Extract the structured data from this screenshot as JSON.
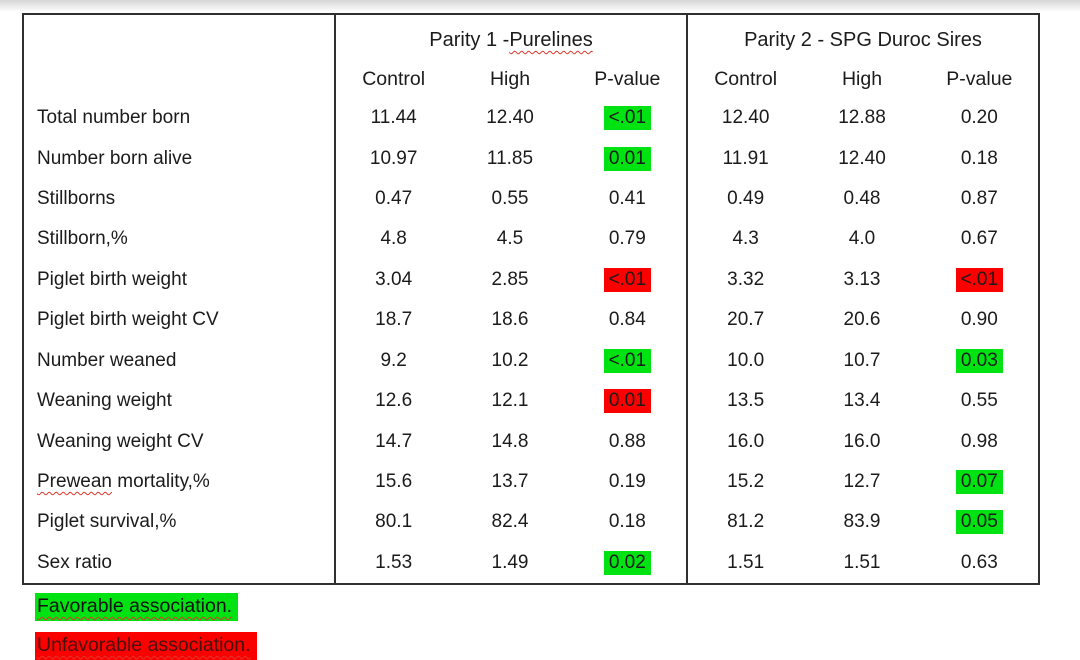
{
  "table": {
    "sections": [
      {
        "title_prefix": "Parity 1 - ",
        "title_wavy": "Purelines"
      },
      {
        "title_prefix": "Parity 2 - SPG Duroc Sires",
        "title_wavy": ""
      }
    ],
    "column_headers": [
      "Control",
      "High",
      "P-value"
    ],
    "rows": [
      {
        "label": {
          "pre": "",
          "wavy": "",
          "post": "Total number born"
        },
        "p1": {
          "control": "11.44",
          "high": "12.40",
          "p": "<.01",
          "p_hl": "green"
        },
        "p2": {
          "control": "12.40",
          "high": "12.88",
          "p": "0.20",
          "p_hl": ""
        }
      },
      {
        "label": {
          "pre": "",
          "wavy": "",
          "post": "Number born alive"
        },
        "p1": {
          "control": "10.97",
          "high": "11.85",
          "p": "0.01",
          "p_hl": "green"
        },
        "p2": {
          "control": "11.91",
          "high": "12.40",
          "p": "0.18",
          "p_hl": ""
        }
      },
      {
        "label": {
          "pre": "",
          "wavy": "",
          "post": "Stillborns"
        },
        "p1": {
          "control": "0.47",
          "high": "0.55",
          "p": "0.41",
          "p_hl": ""
        },
        "p2": {
          "control": "0.49",
          "high": "0.48",
          "p": "0.87",
          "p_hl": ""
        }
      },
      {
        "label": {
          "pre": "",
          "wavy": "",
          "post": "Stillborn,%"
        },
        "p1": {
          "control": "4.8",
          "high": "4.5",
          "p": "0.79",
          "p_hl": ""
        },
        "p2": {
          "control": "4.3",
          "high": "4.0",
          "p": "0.67",
          "p_hl": ""
        }
      },
      {
        "label": {
          "pre": "",
          "wavy": "",
          "post": "Piglet birth weight"
        },
        "p1": {
          "control": "3.04",
          "high": "2.85",
          "p": "<.01",
          "p_hl": "red"
        },
        "p2": {
          "control": "3.32",
          "high": "3.13",
          "p": "<.01",
          "p_hl": "red"
        }
      },
      {
        "label": {
          "pre": "",
          "wavy": "",
          "post": "Piglet birth weight CV"
        },
        "p1": {
          "control": "18.7",
          "high": "18.6",
          "p": "0.84",
          "p_hl": ""
        },
        "p2": {
          "control": "20.7",
          "high": "20.6",
          "p": "0.90",
          "p_hl": ""
        }
      },
      {
        "label": {
          "pre": "",
          "wavy": "",
          "post": "Number weaned"
        },
        "p1": {
          "control": "9.2",
          "high": "10.2",
          "p": "<.01",
          "p_hl": "green"
        },
        "p2": {
          "control": "10.0",
          "high": "10.7",
          "p": "0.03",
          "p_hl": "green"
        }
      },
      {
        "label": {
          "pre": "",
          "wavy": "",
          "post": "Weaning weight"
        },
        "p1": {
          "control": "12.6",
          "high": "12.1",
          "p": "0.01",
          "p_hl": "red"
        },
        "p2": {
          "control": "13.5",
          "high": "13.4",
          "p": "0.55",
          "p_hl": ""
        }
      },
      {
        "label": {
          "pre": "",
          "wavy": "",
          "post": "Weaning weight CV"
        },
        "p1": {
          "control": "14.7",
          "high": "14.8",
          "p": "0.88",
          "p_hl": ""
        },
        "p2": {
          "control": "16.0",
          "high": "16.0",
          "p": "0.98",
          "p_hl": ""
        }
      },
      {
        "label": {
          "pre": "",
          "wavy": "Prewean",
          "post": " mortality,%"
        },
        "p1": {
          "control": "15.6",
          "high": "13.7",
          "p": "0.19",
          "p_hl": ""
        },
        "p2": {
          "control": "15.2",
          "high": "12.7",
          "p": "0.07",
          "p_hl": "green"
        }
      },
      {
        "label": {
          "pre": "",
          "wavy": "",
          "post": "Piglet survival,%"
        },
        "p1": {
          "control": "80.1",
          "high": "82.4",
          "p": "0.18",
          "p_hl": ""
        },
        "p2": {
          "control": "81.2",
          "high": "83.9",
          "p": "0.05",
          "p_hl": "green"
        }
      },
      {
        "label": {
          "pre": "",
          "wavy": "",
          "post": "Sex ratio"
        },
        "p1": {
          "control": "1.53",
          "high": "1.49",
          "p": "0.02",
          "p_hl": "green"
        },
        "p2": {
          "control": "1.51",
          "high": "1.51",
          "p": "0.63",
          "p_hl": ""
        }
      }
    ]
  },
  "legend": [
    {
      "text": "Favorable association.",
      "kind": "favorable"
    },
    {
      "text": "Unfavorable association.",
      "kind": "unfavorable"
    }
  ],
  "colors": {
    "favorable_highlight": "#00e212",
    "unfavorable_highlight": "#fa0100",
    "border": "#2f2f2f",
    "spellcheck_underline": "#df362a"
  }
}
